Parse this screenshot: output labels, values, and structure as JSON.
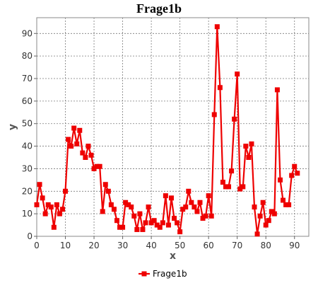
{
  "chart_data": {
    "type": "line",
    "title": "Frage1b",
    "xlabel": "x",
    "ylabel": "y",
    "xlim": [
      0,
      95
    ],
    "ylim": [
      0,
      97
    ],
    "xticks": [
      0,
      10,
      20,
      30,
      40,
      50,
      60,
      70,
      80,
      90
    ],
    "yticks": [
      0,
      10,
      20,
      30,
      40,
      50,
      60,
      70,
      80,
      90
    ],
    "grid": true,
    "legend_position": "bottom",
    "series": [
      {
        "name": "Frage1b",
        "color": "#ee0000",
        "marker": "square",
        "x": [
          0,
          1,
          2,
          3,
          4,
          5,
          6,
          7,
          8,
          9,
          10,
          11,
          12,
          13,
          14,
          15,
          16,
          17,
          18,
          19,
          20,
          21,
          22,
          23,
          24,
          25,
          26,
          27,
          28,
          29,
          30,
          31,
          32,
          33,
          34,
          35,
          36,
          37,
          38,
          39,
          40,
          41,
          42,
          43,
          44,
          45,
          46,
          47,
          48,
          49,
          50,
          51,
          52,
          53,
          54,
          55,
          56,
          57,
          58,
          59,
          60,
          61,
          62,
          63,
          64,
          65,
          66,
          67,
          68,
          69,
          70,
          71,
          72,
          73,
          74,
          75,
          76,
          77,
          78,
          79,
          80,
          81,
          82,
          83,
          84,
          85,
          86,
          87,
          88,
          89,
          90,
          91
        ],
        "y": [
          14,
          23,
          17,
          10,
          14,
          13,
          4,
          14,
          10,
          12,
          20,
          43,
          40,
          48,
          41,
          47,
          37,
          35,
          40,
          36,
          30,
          31,
          31,
          11,
          23,
          20,
          14,
          12,
          7,
          4,
          4,
          15,
          14,
          13,
          9,
          3,
          10,
          3,
          6,
          13,
          6,
          7,
          5,
          4,
          6,
          18,
          5,
          17,
          8,
          6,
          2,
          12,
          13,
          20,
          15,
          13,
          11,
          15,
          8,
          9,
          18,
          9,
          54,
          93,
          66,
          24,
          22,
          22,
          29,
          52,
          72,
          21,
          22,
          40,
          35,
          41,
          13,
          1,
          9,
          15,
          5,
          7,
          11,
          10,
          65,
          25,
          16,
          14,
          14,
          27,
          31,
          28
        ]
      }
    ]
  }
}
